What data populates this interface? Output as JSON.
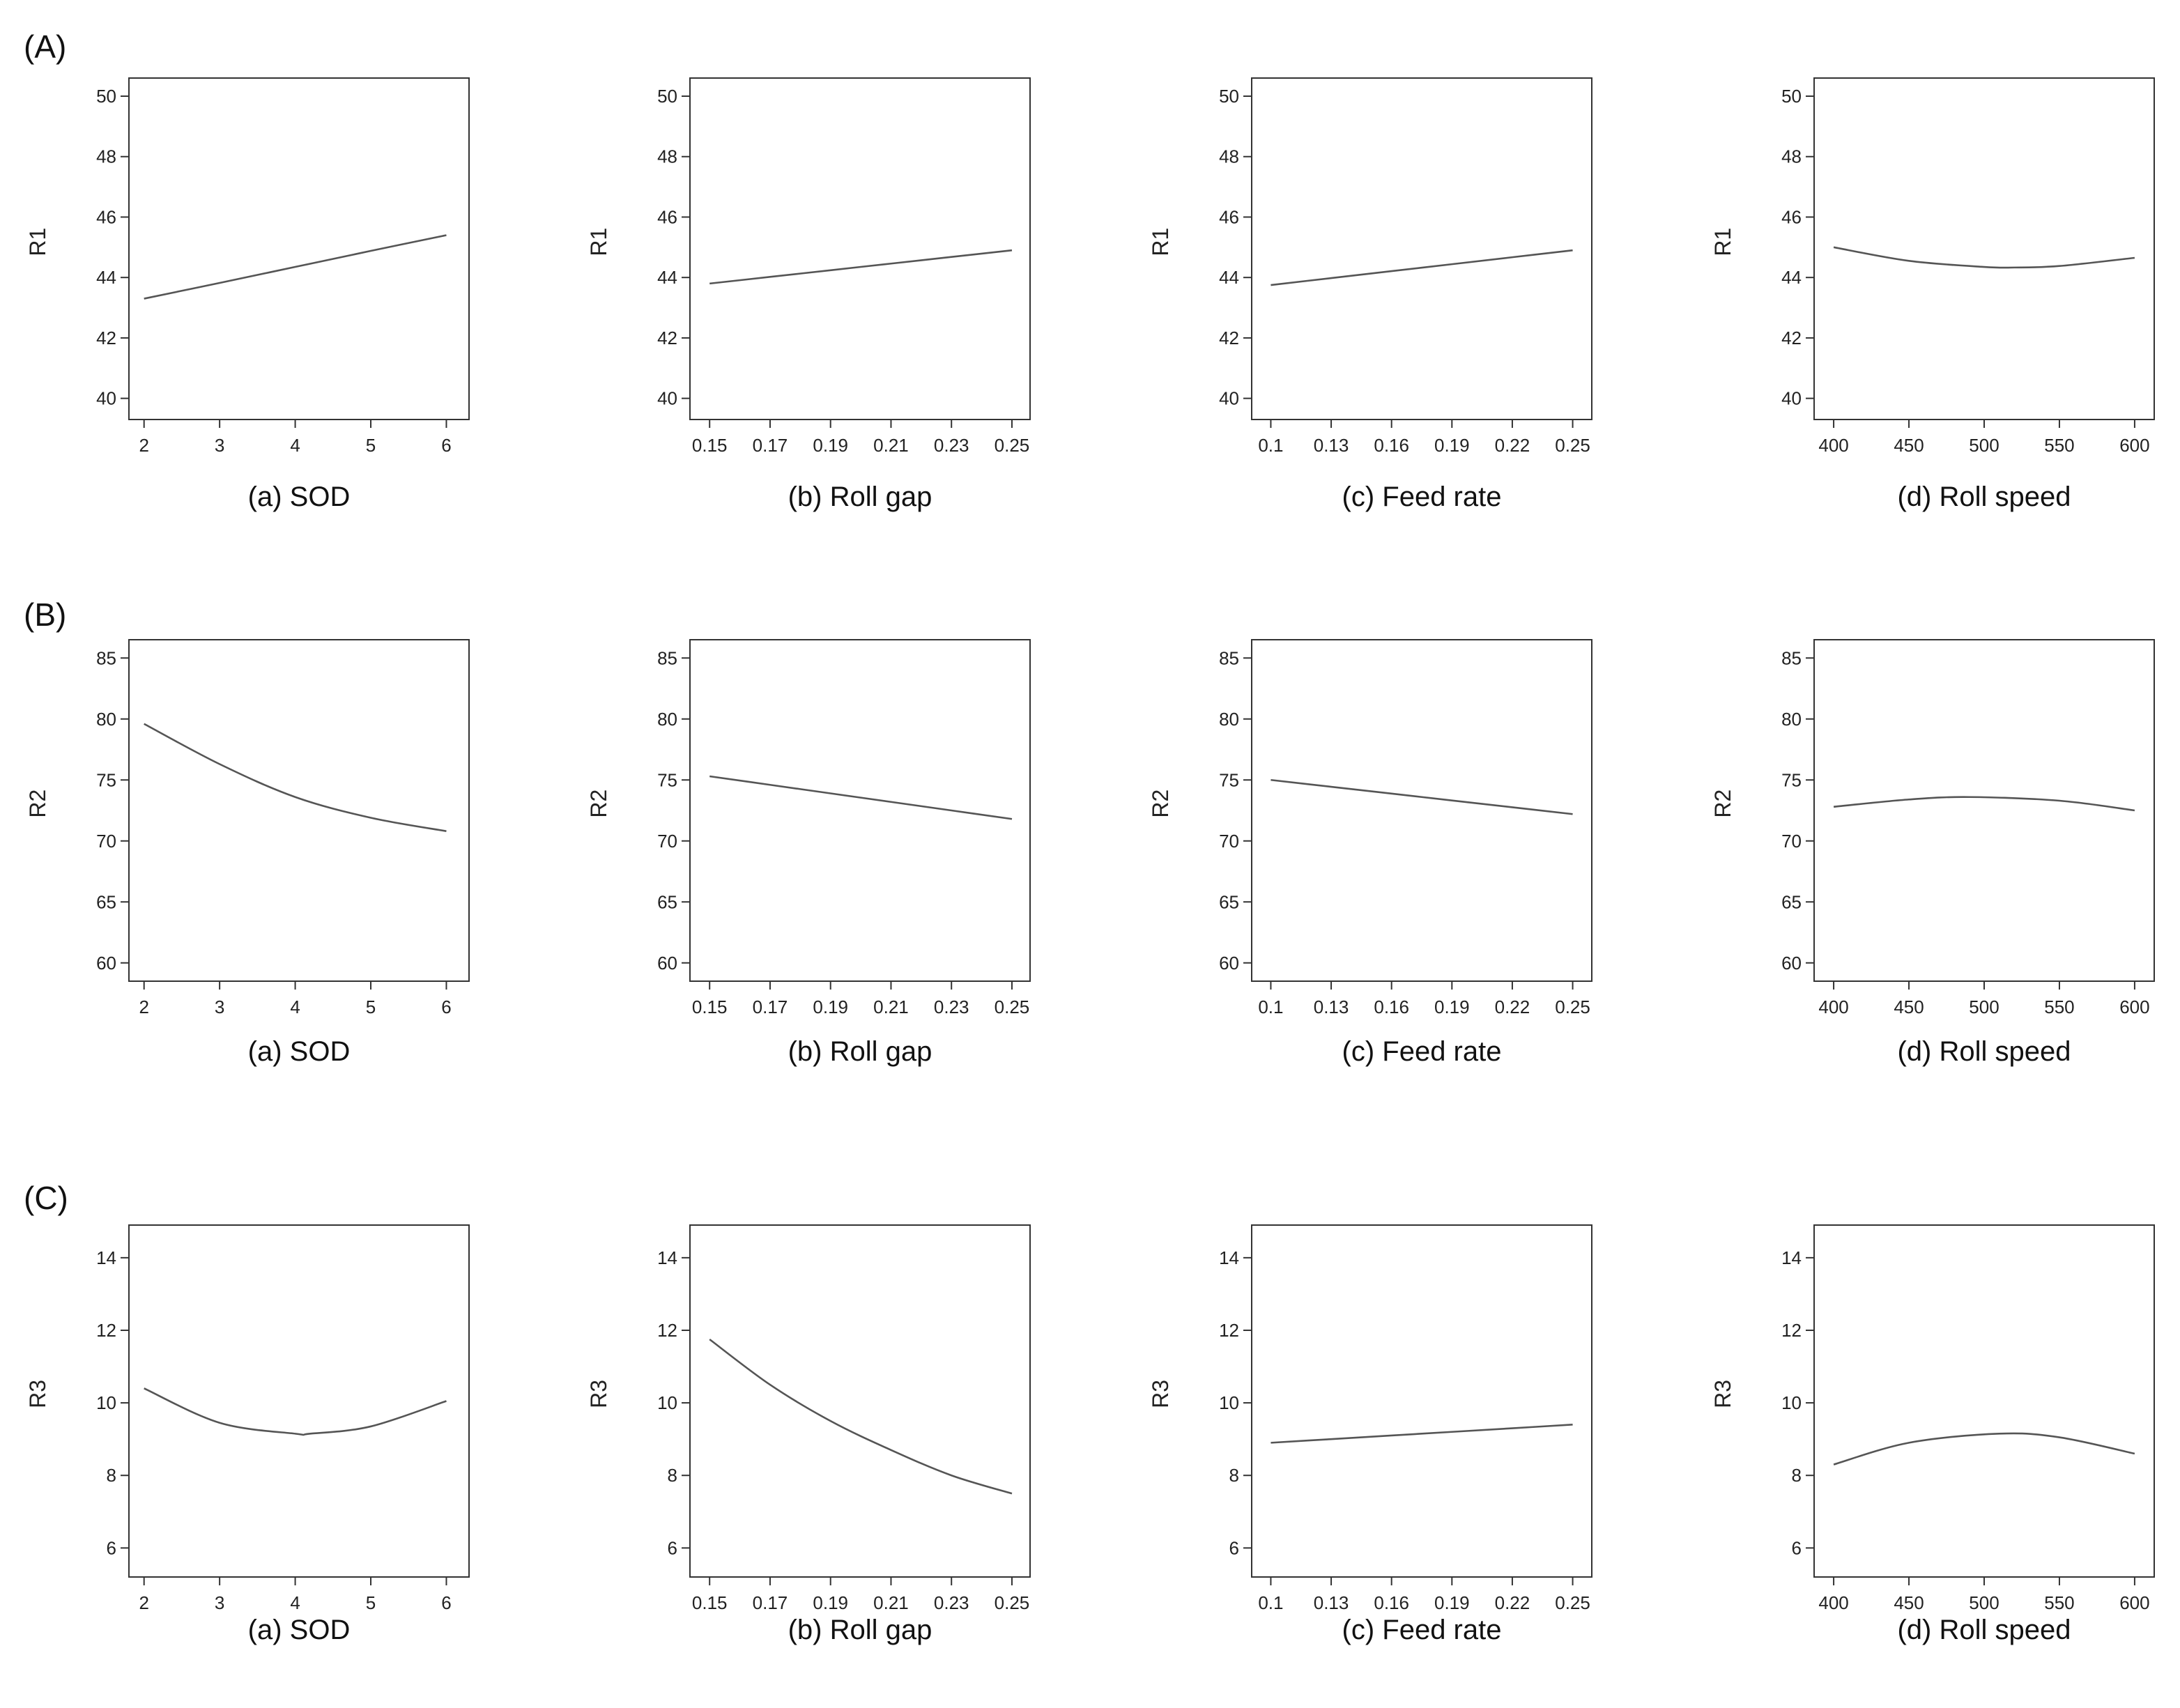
{
  "rows": [
    {
      "label": "(A)",
      "ylabel": "R1"
    },
    {
      "label": "(B)",
      "ylabel": "R2"
    },
    {
      "label": "(C)",
      "ylabel": "R3"
    }
  ],
  "chart_data": [
    {
      "type": "line",
      "row": 0,
      "col": 0,
      "xlabel": "(a) SOD",
      "ylabel": "R1",
      "xticks": [
        2,
        3,
        4,
        5,
        6
      ],
      "xlim": [
        1.8,
        6.3
      ],
      "yticks": [
        40,
        42,
        44,
        46,
        48,
        50
      ],
      "ylim": [
        39.3,
        50.6
      ],
      "x": [
        2,
        3,
        4,
        5,
        6
      ],
      "y": [
        43.3,
        43.82,
        44.35,
        44.88,
        45.4
      ]
    },
    {
      "type": "line",
      "row": 0,
      "col": 1,
      "xlabel": "(b) Roll gap",
      "ylabel": "R1",
      "xticks": [
        "0.15",
        "0.17",
        "0.19",
        "0.21",
        "0.23",
        "0.25"
      ],
      "xlim": [
        0.1435,
        0.256
      ],
      "yticks": [
        40,
        42,
        44,
        46,
        48,
        50
      ],
      "ylim": [
        39.3,
        50.6
      ],
      "x": [
        0.15,
        0.17,
        0.19,
        0.21,
        0.23,
        0.25
      ],
      "y": [
        43.8,
        44.02,
        44.24,
        44.46,
        44.68,
        44.9
      ]
    },
    {
      "type": "line",
      "row": 0,
      "col": 2,
      "xlabel": "(c) Feed rate",
      "ylabel": "R1",
      "xticks": [
        "0.1",
        "0.13",
        "0.16",
        "0.19",
        "0.22",
        "0.25"
      ],
      "xlim": [
        0.0905,
        0.2595
      ],
      "yticks": [
        40,
        42,
        44,
        46,
        48,
        50
      ],
      "ylim": [
        39.3,
        50.6
      ],
      "x": [
        0.1,
        0.13,
        0.16,
        0.19,
        0.22,
        0.25
      ],
      "y": [
        43.75,
        43.98,
        44.21,
        44.44,
        44.67,
        44.9
      ]
    },
    {
      "type": "line",
      "row": 0,
      "col": 3,
      "xlabel": "(d) Roll speed",
      "ylabel": "R1",
      "xticks": [
        400,
        450,
        500,
        550,
        600
      ],
      "xlim": [
        387,
        613
      ],
      "yticks": [
        40,
        42,
        44,
        46,
        48,
        50
      ],
      "ylim": [
        39.3,
        50.6
      ],
      "x": [
        400,
        450,
        500,
        520,
        550,
        600
      ],
      "y": [
        45.0,
        44.55,
        44.35,
        44.33,
        44.38,
        44.65
      ]
    },
    {
      "type": "line",
      "row": 1,
      "col": 0,
      "xlabel": "(a) SOD",
      "ylabel": "R2",
      "xticks": [
        2,
        3,
        4,
        5,
        6
      ],
      "xlim": [
        1.8,
        6.3
      ],
      "yticks": [
        60,
        65,
        70,
        75,
        80,
        85
      ],
      "ylim": [
        58.5,
        86.5
      ],
      "x": [
        2,
        3,
        4,
        5,
        6
      ],
      "y": [
        79.6,
        76.3,
        73.6,
        71.9,
        70.8
      ]
    },
    {
      "type": "line",
      "row": 1,
      "col": 1,
      "xlabel": "(b) Roll gap",
      "ylabel": "R2",
      "xticks": [
        "0.15",
        "0.17",
        "0.19",
        "0.21",
        "0.23",
        "0.25"
      ],
      "xlim": [
        0.1435,
        0.256
      ],
      "yticks": [
        60,
        65,
        70,
        75,
        80,
        85
      ],
      "ylim": [
        58.5,
        86.5
      ],
      "x": [
        0.15,
        0.17,
        0.19,
        0.21,
        0.23,
        0.25
      ],
      "y": [
        75.3,
        74.6,
        73.9,
        73.2,
        72.5,
        71.8
      ]
    },
    {
      "type": "line",
      "row": 1,
      "col": 2,
      "xlabel": "(c) Feed rate",
      "ylabel": "R2",
      "xticks": [
        "0.1",
        "0.13",
        "0.16",
        "0.19",
        "0.22",
        "0.25"
      ],
      "xlim": [
        0.0905,
        0.2595
      ],
      "yticks": [
        60,
        65,
        70,
        75,
        80,
        85
      ],
      "ylim": [
        58.5,
        86.5
      ],
      "x": [
        0.1,
        0.13,
        0.16,
        0.19,
        0.22,
        0.25
      ],
      "y": [
        75.0,
        74.44,
        73.88,
        73.32,
        72.76,
        72.2
      ]
    },
    {
      "type": "line",
      "row": 1,
      "col": 3,
      "xlabel": "(d) Roll speed",
      "ylabel": "R2",
      "xticks": [
        400,
        450,
        500,
        550,
        600
      ],
      "xlim": [
        387,
        613
      ],
      "yticks": [
        60,
        65,
        70,
        75,
        80,
        85
      ],
      "ylim": [
        58.5,
        86.5
      ],
      "x": [
        400,
        450,
        490,
        550,
        600
      ],
      "y": [
        72.8,
        73.4,
        73.6,
        73.3,
        72.5
      ]
    },
    {
      "type": "line",
      "row": 2,
      "col": 0,
      "xlabel": "(a) SOD",
      "ylabel": "R3",
      "xticks": [
        2,
        3,
        4,
        5,
        6
      ],
      "xlim": [
        1.8,
        6.3
      ],
      "yticks": [
        6,
        8,
        10,
        12,
        14
      ],
      "ylim": [
        5.2,
        14.9
      ],
      "x": [
        2,
        3,
        4,
        4.2,
        5,
        6
      ],
      "y": [
        10.4,
        9.45,
        9.15,
        9.15,
        9.35,
        10.05
      ]
    },
    {
      "type": "line",
      "row": 2,
      "col": 1,
      "xlabel": "(b) Roll gap",
      "ylabel": "R3",
      "xticks": [
        "0.15",
        "0.17",
        "0.19",
        "0.21",
        "0.23",
        "0.25"
      ],
      "xlim": [
        0.1435,
        0.256
      ],
      "yticks": [
        6,
        8,
        10,
        12,
        14
      ],
      "ylim": [
        5.2,
        14.9
      ],
      "x": [
        0.15,
        0.17,
        0.19,
        0.21,
        0.23,
        0.25
      ],
      "y": [
        11.75,
        10.5,
        9.5,
        8.7,
        8.0,
        7.5
      ]
    },
    {
      "type": "line",
      "row": 2,
      "col": 2,
      "xlabel": "(c) Feed rate",
      "ylabel": "R3",
      "xticks": [
        "0.1",
        "0.13",
        "0.16",
        "0.19",
        "0.22",
        "0.25"
      ],
      "xlim": [
        0.0905,
        0.2595
      ],
      "yticks": [
        6,
        8,
        10,
        12,
        14
      ],
      "ylim": [
        5.2,
        14.9
      ],
      "x": [
        0.1,
        0.13,
        0.16,
        0.19,
        0.22,
        0.25
      ],
      "y": [
        8.9,
        9.0,
        9.1,
        9.2,
        9.3,
        9.4
      ]
    },
    {
      "type": "line",
      "row": 2,
      "col": 3,
      "xlabel": "(d) Roll speed",
      "ylabel": "R3",
      "xticks": [
        400,
        450,
        500,
        550,
        600
      ],
      "xlim": [
        387,
        613
      ],
      "yticks": [
        6,
        8,
        10,
        12,
        14
      ],
      "ylim": [
        5.2,
        14.9
      ],
      "x": [
        400,
        450,
        510,
        550,
        600
      ],
      "y": [
        8.3,
        8.9,
        9.15,
        9.05,
        8.6
      ]
    }
  ]
}
